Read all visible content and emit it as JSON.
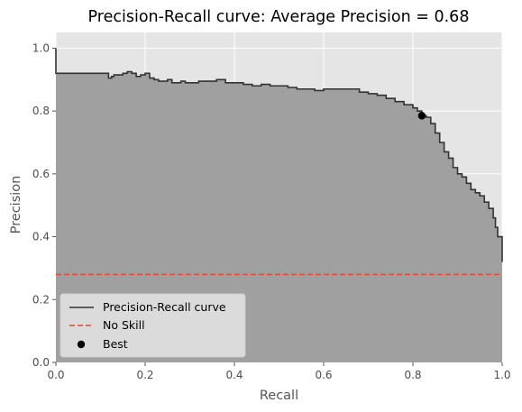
{
  "chart_data": {
    "type": "area",
    "title": "Precision-Recall curve: Average Precision = 0.68",
    "xlabel": "Recall",
    "ylabel": "Precision",
    "xlim": [
      0,
      1.0
    ],
    "ylim": [
      0,
      1.05
    ],
    "grid": true,
    "style": "ggplot",
    "x_ticks": [
      "0.0",
      "0.2",
      "0.4",
      "0.6",
      "0.8",
      "1.0"
    ],
    "y_ticks": [
      "0.0",
      "0.2",
      "0.4",
      "0.6",
      "0.8",
      "1.0"
    ],
    "legend_position": "lower-left",
    "legend": [
      "Precision-Recall curve",
      "No Skill",
      "Best"
    ],
    "series": [
      {
        "name": "Precision-Recall curve",
        "kind": "step-line-filled",
        "color": "#333333",
        "fill_color": "#a0a0a0",
        "x": [
          0.0,
          0.0,
          0.02,
          0.05,
          0.08,
          0.115,
          0.118,
          0.125,
          0.13,
          0.14,
          0.15,
          0.16,
          0.17,
          0.18,
          0.19,
          0.2,
          0.21,
          0.22,
          0.23,
          0.24,
          0.25,
          0.26,
          0.27,
          0.28,
          0.29,
          0.3,
          0.32,
          0.34,
          0.36,
          0.38,
          0.4,
          0.42,
          0.44,
          0.46,
          0.48,
          0.5,
          0.52,
          0.54,
          0.56,
          0.58,
          0.6,
          0.62,
          0.64,
          0.66,
          0.68,
          0.7,
          0.72,
          0.74,
          0.76,
          0.78,
          0.8,
          0.81,
          0.82,
          0.83,
          0.84,
          0.85,
          0.86,
          0.87,
          0.88,
          0.89,
          0.9,
          0.91,
          0.92,
          0.93,
          0.94,
          0.95,
          0.96,
          0.97,
          0.98,
          0.985,
          0.99,
          1.0,
          1.0
        ],
        "y": [
          1.0,
          0.92,
          0.92,
          0.92,
          0.92,
          0.92,
          0.905,
          0.91,
          0.915,
          0.915,
          0.92,
          0.925,
          0.92,
          0.91,
          0.915,
          0.92,
          0.905,
          0.9,
          0.895,
          0.895,
          0.9,
          0.89,
          0.89,
          0.895,
          0.89,
          0.89,
          0.895,
          0.895,
          0.9,
          0.89,
          0.89,
          0.885,
          0.88,
          0.885,
          0.88,
          0.88,
          0.875,
          0.87,
          0.87,
          0.865,
          0.87,
          0.87,
          0.87,
          0.87,
          0.86,
          0.855,
          0.85,
          0.84,
          0.83,
          0.82,
          0.81,
          0.8,
          0.785,
          0.78,
          0.76,
          0.73,
          0.7,
          0.67,
          0.65,
          0.62,
          0.6,
          0.59,
          0.57,
          0.55,
          0.54,
          0.53,
          0.51,
          0.49,
          0.46,
          0.43,
          0.4,
          0.4,
          0.32
        ]
      },
      {
        "name": "No Skill",
        "kind": "dashed-line",
        "color": "#e24a33",
        "x": [
          0,
          1
        ],
        "y": [
          0.28,
          0.28
        ]
      },
      {
        "name": "Best",
        "kind": "scatter",
        "color": "#000000",
        "x": [
          0.82
        ],
        "y": [
          0.785
        ]
      }
    ]
  }
}
